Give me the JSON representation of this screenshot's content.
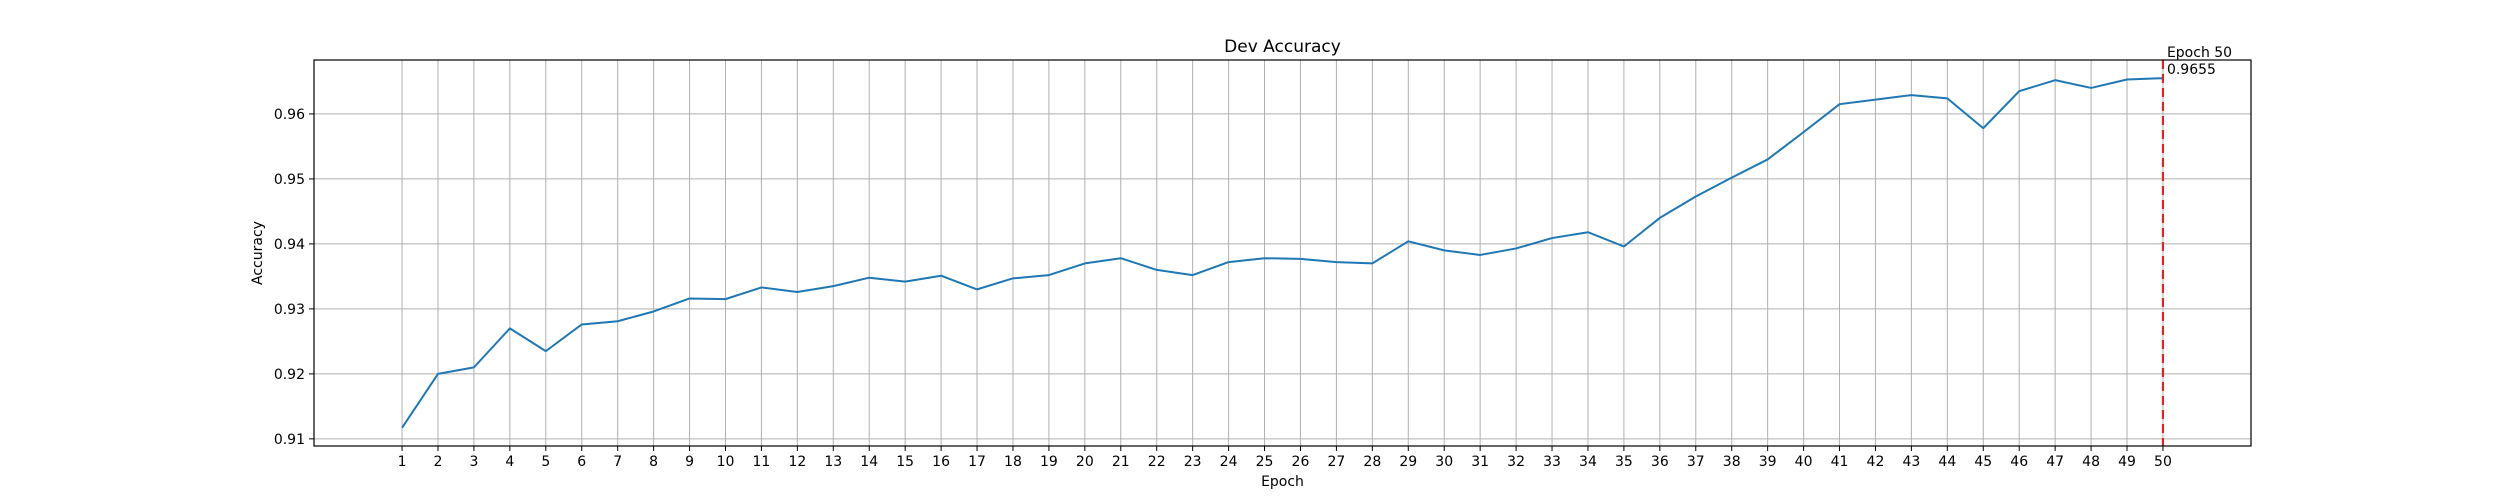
{
  "chart_data": {
    "type": "line",
    "title": "Dev Accuracy",
    "xlabel": "Epoch",
    "ylabel": "Accuracy",
    "x": [
      1,
      2,
      3,
      4,
      5,
      6,
      7,
      8,
      9,
      10,
      11,
      12,
      13,
      14,
      15,
      16,
      17,
      18,
      19,
      20,
      21,
      22,
      23,
      24,
      25,
      26,
      27,
      28,
      29,
      30,
      31,
      32,
      33,
      34,
      35,
      36,
      37,
      38,
      39,
      40,
      41,
      42,
      43,
      44,
      45,
      46,
      47,
      48,
      49,
      50
    ],
    "xticks": [
      "1",
      "2",
      "3",
      "4",
      "5",
      "6",
      "7",
      "8",
      "9",
      "10",
      "11",
      "12",
      "13",
      "14",
      "15",
      "16",
      "17",
      "18",
      "19",
      "20",
      "21",
      "22",
      "23",
      "24",
      "25",
      "26",
      "27",
      "28",
      "29",
      "30",
      "31",
      "32",
      "33",
      "34",
      "35",
      "36",
      "37",
      "38",
      "39",
      "40",
      "41",
      "42",
      "43",
      "44",
      "45",
      "46",
      "47",
      "48",
      "49",
      "50"
    ],
    "yticks": [
      "0.91",
      "0.92",
      "0.93",
      "0.94",
      "0.95",
      "0.96"
    ],
    "series": [
      {
        "values": [
          0.9117,
          0.92,
          0.921,
          0.927,
          0.9235,
          0.9276,
          0.9281,
          0.9296,
          0.9316,
          0.9315,
          0.9333,
          0.9326,
          0.9335,
          0.9348,
          0.9342,
          0.9351,
          0.933,
          0.9347,
          0.9352,
          0.937,
          0.9378,
          0.936,
          0.9352,
          0.9372,
          0.9378,
          0.9377,
          0.9372,
          0.937,
          0.9404,
          0.939,
          0.9383,
          0.9393,
          0.9409,
          0.9418,
          0.9396,
          0.944,
          0.9473,
          0.9502,
          0.953,
          0.9572,
          0.9615,
          0.9622,
          0.9629,
          0.9624,
          0.9578,
          0.9635,
          0.9652,
          0.964,
          0.9653,
          0.9655
        ],
        "color": "#1f77b4"
      }
    ],
    "xlim": [
      -1.45,
      52.45
    ],
    "ylim": [
      0.9089,
      0.9683
    ],
    "grid": true,
    "marker_line": {
      "x": 50,
      "color": "#d62728",
      "style": "dashed"
    },
    "annotation": {
      "line1": "Epoch 50",
      "line2": "0.9655"
    }
  }
}
